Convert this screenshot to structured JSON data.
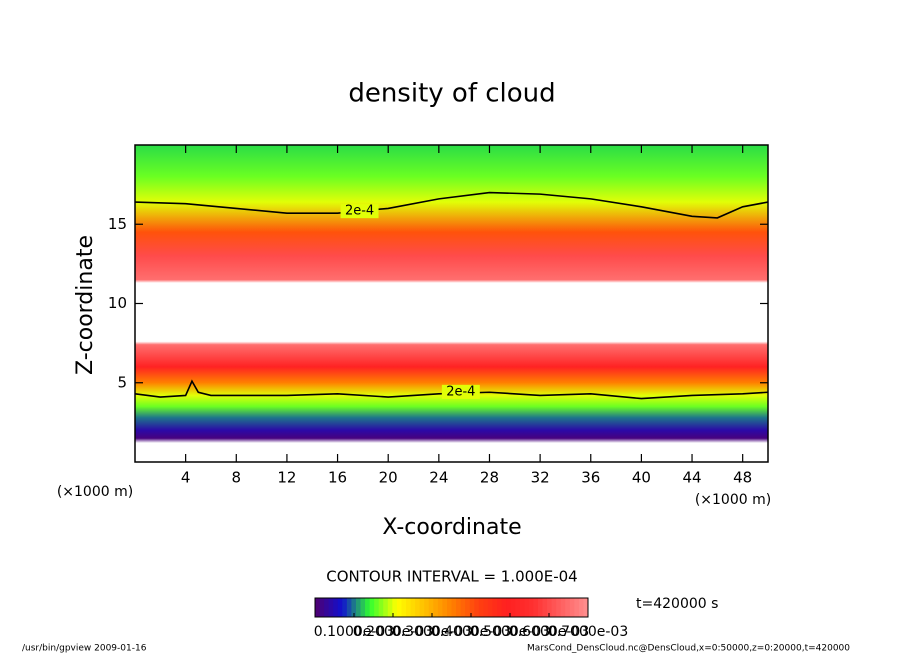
{
  "chart_data": {
    "type": "contour",
    "title": "density of cloud",
    "xlabel": "X-coordinate",
    "ylabel": "Z-coordinate",
    "x_unit": "(×1000 m)",
    "y_unit": "(×1000 m)",
    "xlim": [
      0,
      50
    ],
    "xticks": [
      4,
      8,
      12,
      16,
      20,
      24,
      28,
      32,
      36,
      40,
      44,
      48
    ],
    "ylim": [
      0,
      20
    ],
    "yticks": [
      5,
      10,
      15
    ],
    "contour_interval": "CONTOUR INTERVAL = 1.000E-04",
    "time": "t=420000 s",
    "footer_left": "/usr/bin/gpview  2009-01-16",
    "footer_right": "MarsCond_DensCloud.nc@DensCloud,x=0:50000,z=0:20000,t=420000",
    "clim": [
      0,
      0.0007
    ],
    "colormap": [
      "#500070",
      "#1010d0",
      "#30ff30",
      "#ffff00",
      "#ffc000",
      "#ff8000",
      "#ff4010",
      "#ff2020",
      "#ff3030",
      "#ff6060",
      "#ff9090"
    ],
    "profile": {
      "z": [
        0,
        1.2,
        1.5,
        2,
        2.8,
        3.5,
        4.2,
        5,
        6,
        7.4,
        7.6,
        11.3,
        11.5,
        13,
        14.5,
        16.4,
        18,
        20
      ],
      "values": [
        null,
        null,
        1e-05,
        4e-05,
        0.0001,
        0.00016,
        0.0002,
        0.00035,
        0.0005,
        0.00065,
        null,
        null,
        0.00065,
        0.0006,
        0.0004,
        0.0002,
        0.00016,
        0.00013
      ]
    },
    "contours": [
      {
        "label": "2e-4",
        "level": 0.0002,
        "x": [
          0,
          4,
          8,
          12,
          16,
          20,
          24,
          28,
          32,
          36,
          40,
          44,
          46,
          48,
          50
        ],
        "y": [
          16.4,
          16.3,
          16.0,
          15.7,
          15.7,
          16.0,
          16.6,
          17.0,
          16.9,
          16.6,
          16.1,
          15.5,
          15.4,
          16.1,
          16.4
        ]
      },
      {
        "label": "2e-4",
        "level": 0.0002,
        "x": [
          0,
          2,
          4,
          4.5,
          5,
          6,
          8,
          12,
          16,
          20,
          24,
          28,
          32,
          36,
          40,
          44,
          48,
          50
        ],
        "y": [
          4.3,
          4.1,
          4.2,
          5.1,
          4.4,
          4.2,
          4.2,
          4.2,
          4.3,
          4.1,
          4.3,
          4.4,
          4.2,
          4.3,
          4.0,
          4.2,
          4.3,
          4.4
        ]
      }
    ],
    "colorbar_ticks": [
      {
        "value": 0.0001,
        "label": "0.1000e-03"
      },
      {
        "value": 0.0002,
        "label": "0.2000e-03"
      },
      {
        "value": 0.0003,
        "label": "0.3000e-03"
      },
      {
        "value": 0.0004,
        "label": "0.4000e-03"
      },
      {
        "value": 0.0005,
        "label": "0.5000e-03"
      },
      {
        "value": 0.0006,
        "label": "0.6000e-03"
      },
      {
        "value": 0.0007,
        "label": "0.7000e-03"
      }
    ]
  }
}
